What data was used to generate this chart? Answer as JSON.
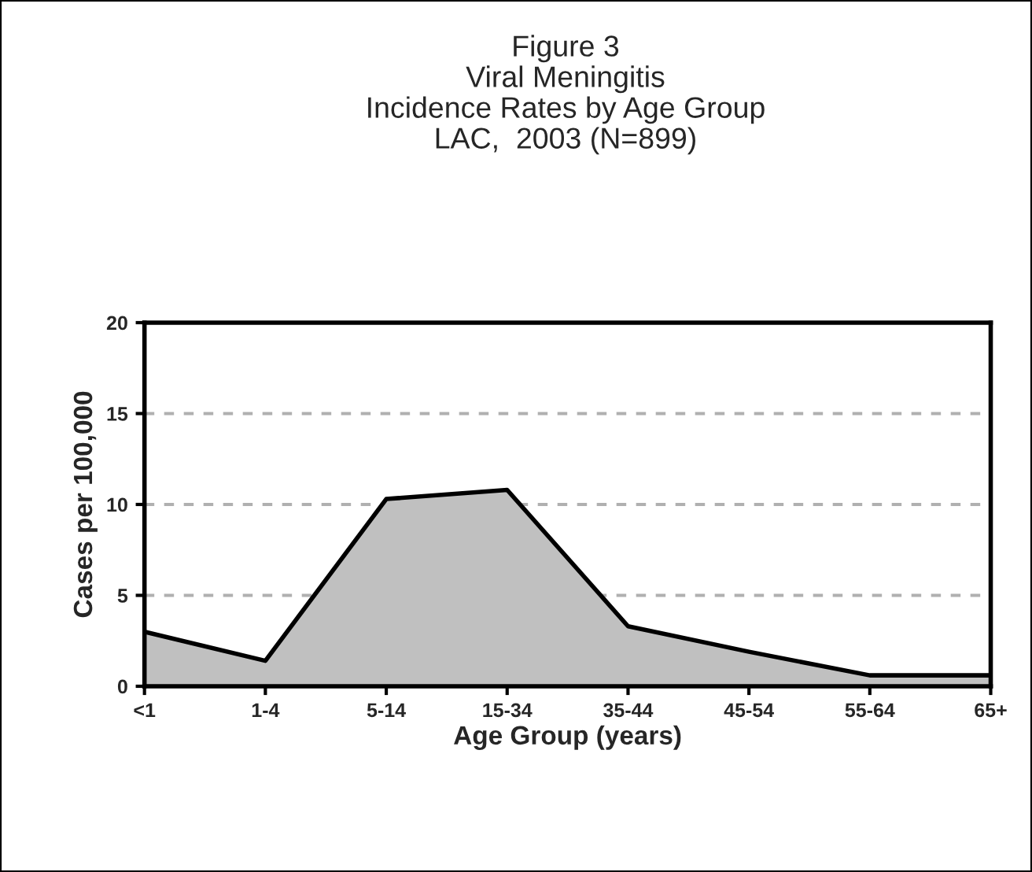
{
  "chart_data": {
    "type": "area",
    "title": "Figure 3\nViral Meningitis\nIncidence Rates by Age Group\nLAC,  2003 (N=899)",
    "xlabel": "Age Group (years)",
    "ylabel": "Cases per 100,000",
    "categories": [
      "<1",
      "1-4",
      "5-14",
      "15-34",
      "35-44",
      "45-54",
      "55-64",
      "65+"
    ],
    "series": [
      {
        "color": "#c0c0c0",
        "values": [
          3.0,
          1.4,
          10.3,
          10.8,
          3.3,
          1.9,
          0.6,
          0.6
        ]
      }
    ],
    "ylim": [
      0,
      20
    ],
    "yticks": [
      0,
      5,
      10,
      15,
      20
    ],
    "grid": "y"
  }
}
